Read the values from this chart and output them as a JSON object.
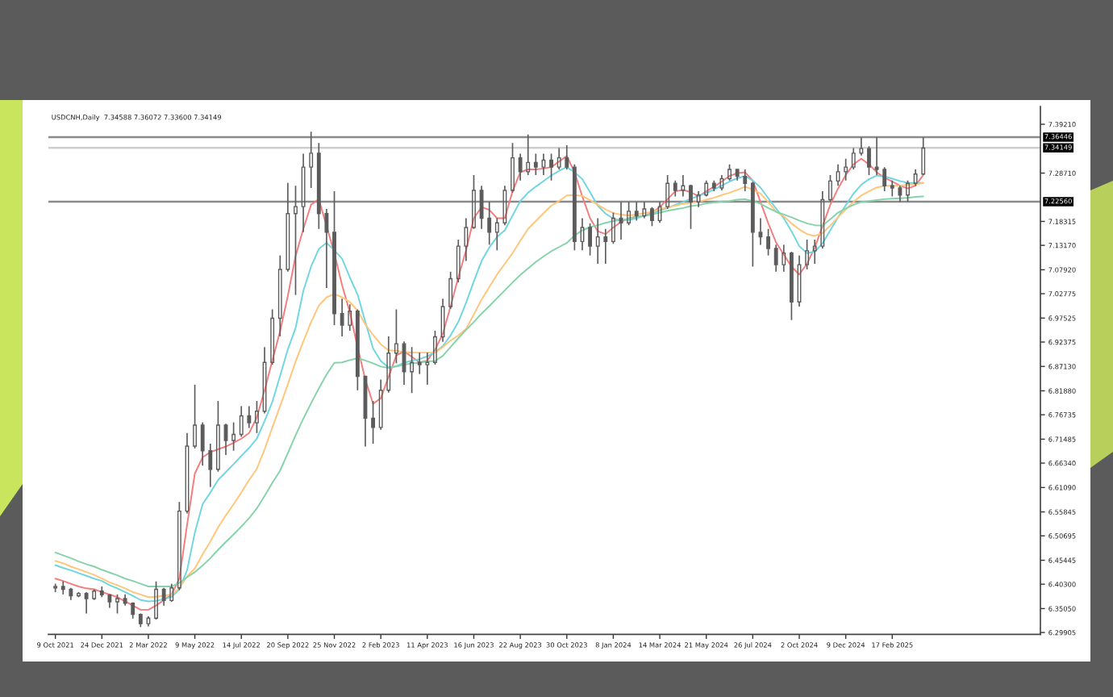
{
  "chart_data": {
    "type": "candlestick",
    "title": "USDCNH,Daily  7.34588 7.36072 7.33600 7.34149",
    "categories": [
      "9 Oct 2021",
      null,
      null,
      null,
      null,
      null,
      "24 Dec 2021",
      null,
      null,
      null,
      null,
      null,
      "2 Mar 2022",
      null,
      null,
      null,
      null,
      null,
      "9 May 2022",
      null,
      null,
      null,
      null,
      null,
      "14 Jul 2022",
      null,
      null,
      null,
      null,
      null,
      "20 Sep 2022",
      null,
      null,
      null,
      null,
      null,
      "25 Nov 2022",
      null,
      null,
      null,
      null,
      null,
      "2 Feb 2023",
      null,
      null,
      null,
      null,
      null,
      "11 Apr 2023",
      null,
      null,
      null,
      null,
      null,
      "16 Jun 2023",
      null,
      null,
      null,
      null,
      null,
      "22 Aug 2023",
      null,
      null,
      null,
      null,
      null,
      "30 Oct 2023",
      null,
      null,
      null,
      null,
      null,
      "8 Jan 2024",
      null,
      null,
      null,
      null,
      null,
      "14 Mar 2024",
      null,
      null,
      null,
      null,
      null,
      "21 May 2024",
      null,
      null,
      null,
      null,
      null,
      "26 Jul 2024",
      null,
      null,
      null,
      null,
      null,
      "2 Oct 2024",
      null,
      null,
      null,
      null,
      null,
      "9 Dec 2024",
      null,
      null,
      null,
      null,
      null,
      "17 Feb 2025",
      null,
      null,
      null,
      null
    ],
    "color": "#5c5c5c",
    "ohlc": [
      [
        6.395,
        6.404,
        6.386,
        6.398
      ],
      [
        6.398,
        6.409,
        6.381,
        6.392
      ],
      [
        6.392,
        6.395,
        6.369,
        6.378
      ],
      [
        6.378,
        6.386,
        6.375,
        6.383
      ],
      [
        6.383,
        6.386,
        6.34,
        6.372
      ],
      [
        6.372,
        6.392,
        6.369,
        6.388
      ],
      [
        6.388,
        6.398,
        6.375,
        6.38
      ],
      [
        6.38,
        6.381,
        6.352,
        6.365
      ],
      [
        6.365,
        6.381,
        6.34,
        6.372
      ],
      [
        6.372,
        6.381,
        6.357,
        6.362
      ],
      [
        6.362,
        6.364,
        6.329,
        6.338
      ],
      [
        6.338,
        6.34,
        6.311,
        6.318
      ],
      [
        6.318,
        6.334,
        6.312,
        6.33
      ],
      [
        6.33,
        6.409,
        6.327,
        6.392
      ],
      [
        6.392,
        6.395,
        6.357,
        6.368
      ],
      [
        6.368,
        6.404,
        6.365,
        6.395
      ],
      [
        6.395,
        6.58,
        6.39,
        6.56
      ],
      [
        6.56,
        6.728,
        6.555,
        6.7
      ],
      [
        6.7,
        6.832,
        6.695,
        6.745
      ],
      [
        6.745,
        6.751,
        6.658,
        6.69
      ],
      [
        6.69,
        6.705,
        6.612,
        6.65
      ],
      [
        6.65,
        6.797,
        6.645,
        6.745
      ],
      [
        6.745,
        6.748,
        6.681,
        6.712
      ],
      [
        6.712,
        6.751,
        6.69,
        6.725
      ],
      [
        6.725,
        6.786,
        6.72,
        6.765
      ],
      [
        6.765,
        6.786,
        6.739,
        6.75
      ],
      [
        6.75,
        6.797,
        6.728,
        6.775
      ],
      [
        6.775,
        6.913,
        6.77,
        6.88
      ],
      [
        6.88,
        6.994,
        6.875,
        6.975
      ],
      [
        6.975,
        7.11,
        6.936,
        7.08
      ],
      [
        7.08,
        7.266,
        7.075,
        7.2
      ],
      [
        7.2,
        7.26,
        7.025,
        7.215
      ],
      [
        7.215,
        7.329,
        7.16,
        7.3
      ],
      [
        7.3,
        7.376,
        7.255,
        7.33
      ],
      [
        7.33,
        7.352,
        7.167,
        7.2
      ],
      [
        7.2,
        7.21,
        7.04,
        7.16
      ],
      [
        7.16,
        7.248,
        6.96,
        6.985
      ],
      [
        6.985,
        7.017,
        6.936,
        6.96
      ],
      [
        6.96,
        7.005,
        6.948,
        6.99
      ],
      [
        6.99,
        6.994,
        6.82,
        6.85
      ],
      [
        6.85,
        6.85,
        6.699,
        6.76
      ],
      [
        6.76,
        6.797,
        6.705,
        6.74
      ],
      [
        6.74,
        6.843,
        6.735,
        6.82
      ],
      [
        6.82,
        6.936,
        6.815,
        6.9
      ],
      [
        6.9,
        6.994,
        6.878,
        6.92
      ],
      [
        6.92,
        6.925,
        6.832,
        6.86
      ],
      [
        6.86,
        6.913,
        6.814,
        6.88
      ],
      [
        6.88,
        6.901,
        6.855,
        6.875
      ],
      [
        6.875,
        6.901,
        6.832,
        6.88
      ],
      [
        6.88,
        6.948,
        6.875,
        6.935
      ],
      [
        6.935,
        7.017,
        6.924,
        7.0
      ],
      [
        7.0,
        7.075,
        6.995,
        7.06
      ],
      [
        7.06,
        7.144,
        7.052,
        7.13
      ],
      [
        7.13,
        7.19,
        7.098,
        7.17
      ],
      [
        7.17,
        7.283,
        7.167,
        7.25
      ],
      [
        7.25,
        7.26,
        7.167,
        7.19
      ],
      [
        7.19,
        7.225,
        7.133,
        7.16
      ],
      [
        7.16,
        7.19,
        7.121,
        7.18
      ],
      [
        7.18,
        7.26,
        7.175,
        7.25
      ],
      [
        7.25,
        7.352,
        7.245,
        7.32
      ],
      [
        7.32,
        7.329,
        7.271,
        7.29
      ],
      [
        7.29,
        7.37,
        7.283,
        7.31
      ],
      [
        7.31,
        7.329,
        7.283,
        7.3
      ],
      [
        7.3,
        7.329,
        7.283,
        7.315
      ],
      [
        7.315,
        7.329,
        7.271,
        7.3
      ],
      [
        7.3,
        7.341,
        7.295,
        7.32
      ],
      [
        7.32,
        7.347,
        7.295,
        7.3
      ],
      [
        7.3,
        7.306,
        7.121,
        7.14
      ],
      [
        7.14,
        7.19,
        7.121,
        7.17
      ],
      [
        7.17,
        7.179,
        7.11,
        7.13
      ],
      [
        7.13,
        7.19,
        7.092,
        7.15
      ],
      [
        7.15,
        7.167,
        7.092,
        7.14
      ],
      [
        7.14,
        7.202,
        7.135,
        7.19
      ],
      [
        7.19,
        7.225,
        7.144,
        7.18
      ],
      [
        7.18,
        7.225,
        7.175,
        7.205
      ],
      [
        7.205,
        7.225,
        7.185,
        7.195
      ],
      [
        7.195,
        7.225,
        7.19,
        7.21
      ],
      [
        7.21,
        7.214,
        7.173,
        7.185
      ],
      [
        7.185,
        7.225,
        7.18,
        7.215
      ],
      [
        7.215,
        7.283,
        7.21,
        7.265
      ],
      [
        7.265,
        7.271,
        7.237,
        7.25
      ],
      [
        7.25,
        7.283,
        7.237,
        7.26
      ],
      [
        7.26,
        7.262,
        7.167,
        7.225
      ],
      [
        7.225,
        7.248,
        7.214,
        7.24
      ],
      [
        7.24,
        7.271,
        7.237,
        7.265
      ],
      [
        7.265,
        7.271,
        7.248,
        7.255
      ],
      [
        7.255,
        7.283,
        7.25,
        7.275
      ],
      [
        7.275,
        7.306,
        7.271,
        7.295
      ],
      [
        7.295,
        7.295,
        7.271,
        7.28
      ],
      [
        7.28,
        7.295,
        7.248,
        7.265
      ],
      [
        7.265,
        7.268,
        7.086,
        7.16
      ],
      [
        7.16,
        7.19,
        7.133,
        7.15
      ],
      [
        7.15,
        7.167,
        7.11,
        7.125
      ],
      [
        7.125,
        7.133,
        7.075,
        7.09
      ],
      [
        7.09,
        7.133,
        7.075,
        7.115
      ],
      [
        7.115,
        7.118,
        6.971,
        7.01
      ],
      [
        7.01,
        7.11,
        7.0,
        7.09
      ],
      [
        7.09,
        7.144,
        7.08,
        7.12
      ],
      [
        7.12,
        7.144,
        7.092,
        7.13
      ],
      [
        7.13,
        7.248,
        7.125,
        7.23
      ],
      [
        7.23,
        7.283,
        7.225,
        7.27
      ],
      [
        7.27,
        7.306,
        7.26,
        7.29
      ],
      [
        7.29,
        7.318,
        7.271,
        7.3
      ],
      [
        7.3,
        7.341,
        7.295,
        7.33
      ],
      [
        7.33,
        7.364,
        7.325,
        7.34
      ],
      [
        7.34,
        7.345,
        7.283,
        7.3
      ],
      [
        7.3,
        7.364,
        7.283,
        7.295
      ],
      [
        7.295,
        7.3,
        7.248,
        7.26
      ],
      [
        7.26,
        7.271,
        7.237,
        7.255
      ],
      [
        7.255,
        7.26,
        7.225,
        7.24
      ],
      [
        7.24,
        7.271,
        7.225,
        7.265
      ],
      [
        7.265,
        7.295,
        7.26,
        7.285
      ],
      [
        7.285,
        7.364,
        7.283,
        7.341
      ]
    ],
    "series": [
      {
        "type": "line",
        "color": "#f47c7c",
        "values": [
          6.415,
          6.41,
          6.404,
          6.398,
          6.394,
          6.392,
          6.386,
          6.381,
          6.375,
          6.366,
          6.357,
          6.348,
          6.348,
          6.357,
          6.369,
          6.381,
          6.415,
          6.531,
          6.641,
          6.676,
          6.687,
          6.693,
          6.699,
          6.707,
          6.716,
          6.728,
          6.762,
          6.82,
          6.884,
          6.947,
          7.023,
          7.109,
          7.167,
          7.219,
          7.231,
          7.173,
          7.115,
          7.046,
          6.988,
          6.913,
          6.843,
          6.791,
          6.803,
          6.849,
          6.895,
          6.904,
          6.892,
          6.88,
          6.884,
          6.907,
          6.942,
          7.0,
          7.063,
          7.121,
          7.19,
          7.214,
          7.208,
          7.19,
          7.19,
          7.248,
          7.289,
          7.295,
          7.295,
          7.297,
          7.3,
          7.312,
          7.324,
          7.289,
          7.237,
          7.19,
          7.162,
          7.156,
          7.17,
          7.182,
          7.19,
          7.193,
          7.195,
          7.202,
          7.214,
          7.231,
          7.248,
          7.251,
          7.246,
          7.237,
          7.248,
          7.258,
          7.269,
          7.281,
          7.287,
          7.289,
          7.271,
          7.225,
          7.179,
          7.138,
          7.112,
          7.086,
          7.069,
          7.092,
          7.127,
          7.173,
          7.219,
          7.254,
          7.283,
          7.306,
          7.318,
          7.306,
          7.289,
          7.277,
          7.269,
          7.26,
          7.254,
          7.26,
          7.283
        ]
      },
      {
        "type": "line",
        "color": "#6fd6e0",
        "values": [
          6.444,
          6.438,
          6.433,
          6.427,
          6.421,
          6.415,
          6.41,
          6.401,
          6.394,
          6.386,
          6.378,
          6.369,
          6.366,
          6.367,
          6.371,
          6.376,
          6.392,
          6.433,
          6.514,
          6.575,
          6.6,
          6.627,
          6.644,
          6.661,
          6.679,
          6.696,
          6.716,
          6.754,
          6.795,
          6.851,
          6.908,
          6.954,
          7.034,
          7.086,
          7.124,
          7.137,
          7.121,
          7.103,
          7.063,
          7.026,
          6.967,
          6.91,
          6.883,
          6.869,
          6.872,
          6.879,
          6.884,
          6.887,
          6.893,
          6.902,
          6.915,
          6.938,
          6.967,
          7.008,
          7.054,
          7.098,
          7.127,
          7.15,
          7.164,
          7.196,
          7.227,
          7.245,
          7.258,
          7.27,
          7.282,
          7.292,
          7.3,
          7.289,
          7.274,
          7.246,
          7.217,
          7.2,
          7.189,
          7.186,
          7.186,
          7.19,
          7.195,
          7.2,
          7.207,
          7.212,
          7.219,
          7.225,
          7.232,
          7.238,
          7.244,
          7.252,
          7.26,
          7.269,
          7.276,
          7.281,
          7.271,
          7.256,
          7.233,
          7.211,
          7.19,
          7.162,
          7.13,
          7.115,
          7.118,
          7.136,
          7.164,
          7.192,
          7.218,
          7.243,
          7.262,
          7.274,
          7.282,
          7.28,
          7.275,
          7.27,
          7.266,
          7.266,
          7.266
        ]
      },
      {
        "type": "line",
        "color": "#ffc57a",
        "values": [
          6.453,
          6.448,
          6.441,
          6.435,
          6.429,
          6.423,
          6.415,
          6.407,
          6.401,
          6.394,
          6.386,
          6.381,
          6.375,
          6.376,
          6.378,
          6.381,
          6.394,
          6.42,
          6.437,
          6.467,
          6.495,
          6.525,
          6.551,
          6.575,
          6.6,
          6.627,
          6.651,
          6.693,
          6.74,
          6.786,
          6.833,
          6.882,
          6.925,
          6.967,
          7.002,
          7.02,
          7.027,
          7.02,
          7.01,
          6.991,
          6.962,
          6.939,
          6.919,
          6.906,
          6.905,
          6.902,
          6.901,
          6.901,
          6.901,
          6.901,
          6.913,
          6.927,
          6.938,
          6.952,
          6.983,
          7.015,
          7.042,
          7.069,
          7.092,
          7.115,
          7.142,
          7.167,
          7.184,
          7.201,
          7.217,
          7.227,
          7.239,
          7.24,
          7.238,
          7.229,
          7.219,
          7.209,
          7.201,
          7.198,
          7.196,
          7.198,
          7.201,
          7.204,
          7.209,
          7.214,
          7.217,
          7.221,
          7.223,
          7.225,
          7.23,
          7.234,
          7.24,
          7.245,
          7.251,
          7.258,
          7.252,
          7.243,
          7.225,
          7.204,
          7.194,
          7.179,
          7.166,
          7.156,
          7.152,
          7.158,
          7.174,
          7.192,
          7.209,
          7.225,
          7.239,
          7.248,
          7.256,
          7.26,
          7.26,
          7.26,
          7.262,
          7.263,
          7.266
        ]
      },
      {
        "type": "line",
        "color": "#86d3aa",
        "values": [
          6.471,
          6.465,
          6.459,
          6.452,
          6.446,
          6.441,
          6.434,
          6.428,
          6.422,
          6.415,
          6.41,
          6.404,
          6.398,
          6.398,
          6.398,
          6.398,
          6.406,
          6.418,
          6.429,
          6.443,
          6.459,
          6.477,
          6.494,
          6.51,
          6.527,
          6.545,
          6.566,
          6.593,
          6.621,
          6.647,
          6.685,
          6.723,
          6.759,
          6.792,
          6.824,
          6.854,
          6.879,
          6.88,
          6.885,
          6.889,
          6.884,
          6.878,
          6.871,
          6.868,
          6.871,
          6.875,
          6.878,
          6.879,
          6.882,
          6.883,
          6.894,
          6.913,
          6.932,
          6.95,
          6.967,
          6.985,
          7.001,
          7.018,
          7.035,
          7.052,
          7.068,
          7.082,
          7.096,
          7.108,
          7.119,
          7.128,
          7.137,
          7.153,
          7.164,
          7.171,
          7.175,
          7.18,
          7.184,
          7.186,
          7.189,
          7.193,
          7.195,
          7.198,
          7.202,
          7.206,
          7.209,
          7.212,
          7.216,
          7.218,
          7.222,
          7.224,
          7.226,
          7.227,
          7.23,
          7.231,
          7.227,
          7.221,
          7.212,
          7.204,
          7.198,
          7.192,
          7.185,
          7.179,
          7.175,
          7.174,
          7.188,
          7.202,
          7.211,
          7.219,
          7.225,
          7.227,
          7.229,
          7.231,
          7.232,
          7.233,
          7.234,
          7.236,
          7.237
        ]
      }
    ],
    "ylim": [
      6.295,
      7.43
    ],
    "yticks": [
      {
        "value": 6.29905,
        "label": "6.29905"
      },
      {
        "value": 6.3505,
        "label": "6.35050"
      },
      {
        "value": 6.403,
        "label": "6.40300"
      },
      {
        "value": 6.45445,
        "label": "6.45445"
      },
      {
        "value": 6.50695,
        "label": "6.50695"
      },
      {
        "value": 6.55845,
        "label": "6.55845"
      },
      {
        "value": 6.6109,
        "label": "6.61090"
      },
      {
        "value": 6.6634,
        "label": "6.66340"
      },
      {
        "value": 6.71485,
        "label": "6.71485"
      },
      {
        "value": 6.76735,
        "label": "6.76735"
      },
      {
        "value": 6.8188,
        "label": "6.81880"
      },
      {
        "value": 6.8713,
        "label": "6.87130"
      },
      {
        "value": 6.92375,
        "label": "6.92375"
      },
      {
        "value": 6.97525,
        "label": "6.97525"
      },
      {
        "value": 7.02775,
        "label": "7.02775"
      },
      {
        "value": 7.0792,
        "label": "7.07920"
      },
      {
        "value": 7.1317,
        "label": "7.13170"
      },
      {
        "value": 7.18315,
        "label": "7.18315"
      },
      {
        "value": 7.2871,
        "label": "7.28710"
      },
      {
        "value": 7.3921,
        "label": "7.39210"
      }
    ],
    "ref_lines": [
      {
        "axis": "y",
        "value": 7.36446,
        "label": "7.36446",
        "color": "#8a8a8a"
      },
      {
        "axis": "y",
        "value": 7.34149,
        "label": "7.34149",
        "color": "#cfcfcf"
      },
      {
        "axis": "y",
        "value": 7.2256,
        "label": "7.22560",
        "color": "#8a8a8a"
      }
    ]
  }
}
